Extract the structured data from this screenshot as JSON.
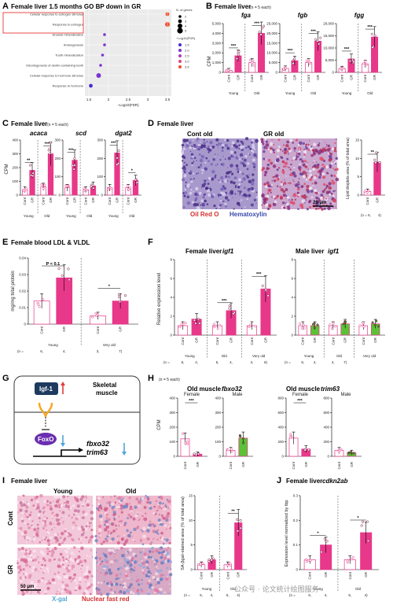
{
  "panelA": {
    "letter": "A",
    "title": "Female liver 1.5 months GO BP down in GR",
    "terms": [
      {
        "label": "Cellular response to estrogen stimulus",
        "logfdr": 3.5,
        "genes": 3,
        "highlight": true
      },
      {
        "label": "Response to estrogen",
        "logfdr": 3.5,
        "genes": 4,
        "highlight": true
      },
      {
        "label": "Enamel mineralization",
        "logfdr": 1.9,
        "genes": 2,
        "highlight": false
      },
      {
        "label": "Amelogenesis",
        "logfdr": 1.9,
        "genes": 2,
        "highlight": false
      },
      {
        "label": "Tooth mineralization",
        "logfdr": 1.85,
        "genes": 2,
        "highlight": false
      },
      {
        "label": "Odontogenesis of dentin-containing tooth",
        "logfdr": 1.8,
        "genes": 2,
        "highlight": false
      },
      {
        "label": "Cellular response to hormone stimulus",
        "logfdr": 1.75,
        "genes": 4,
        "highlight": false
      },
      {
        "label": "Response to hormone",
        "logfdr": 1.55,
        "genes": 3,
        "highlight": false
      }
    ],
    "xticks": [
      "1.5",
      "2",
      "2.5",
      "3",
      "3.5"
    ],
    "xlabel": "−Log10(FDR)",
    "legend_size_title": "N. of genes",
    "legend_sizes": [
      "2",
      "3",
      "4",
      "5"
    ],
    "legend_color_title": "−Log10(FDR)",
    "legend_colors": [
      "1.5",
      "2.0",
      "2.5",
      "3.0",
      "3.5"
    ]
  },
  "panelB": {
    "letter": "B",
    "title": "Female liver",
    "n": "(n = 5 each)",
    "ylabel": "CPM",
    "charts": [
      {
        "gene": "fga",
        "ylim": [
          0,
          5000
        ],
        "yticks": [
          "0",
          "1,000",
          "2,000",
          "3,000",
          "4,000",
          "5,000"
        ],
        "values": [
          200,
          1700,
          1000,
          4000
        ],
        "sig": [
          "***",
          "***"
        ]
      },
      {
        "gene": "fgb",
        "ylim": [
          0,
          25000
        ],
        "yticks": [
          "0",
          "5,000",
          "10,000",
          "15,000",
          "20,000",
          "25,000"
        ],
        "values": [
          2000,
          6000,
          5000,
          16000
        ],
        "sig": [
          "***",
          "***"
        ]
      },
      {
        "gene": "fgg",
        "ylim": [
          0,
          20000
        ],
        "yticks": [
          "0",
          "5,000",
          "10,000",
          "15,000",
          "20,000"
        ],
        "values": [
          1500,
          5500,
          3500,
          14500
        ],
        "sig": [
          "***",
          "***"
        ]
      }
    ],
    "groups": [
      "Young",
      "Old"
    ],
    "conds": [
      "Cont",
      "GR"
    ]
  },
  "panelC": {
    "letter": "C",
    "title": "Female liver",
    "n": "(n = 5 each)",
    "ylabel": "CPM",
    "charts": [
      {
        "gene": "acaca",
        "ylim": [
          0,
          400
        ],
        "yticks": [
          "0",
          "100",
          "200",
          "300",
          "400"
        ],
        "values": [
          40,
          180,
          60,
          300
        ],
        "sig": [
          "**",
          "***"
        ]
      },
      {
        "gene": "scd",
        "ylim": [
          0,
          300
        ],
        "yticks": [
          "0",
          "100",
          "200",
          "300"
        ],
        "values": [
          40,
          190,
          30,
          50
        ],
        "sig": [
          "***",
          ""
        ]
      },
      {
        "gene": "dgat2",
        "ylim": [
          0,
          300
        ],
        "yticks": [
          "0",
          "100",
          "200",
          "300"
        ],
        "values": [
          40,
          230,
          40,
          80
        ],
        "sig": [
          "***",
          "*"
        ]
      }
    ],
    "groups": [
      "Young",
      "Old"
    ],
    "conds": [
      "Cont",
      "GR"
    ]
  },
  "panelD": {
    "letter": "D",
    "title": "Female liver",
    "img_labels": [
      "Cont old",
      "GR old"
    ],
    "stain1": "Oil Red O",
    "stain2": "Hematoxylin",
    "scale": "20 μm",
    "ylabel": "Lipid droplets area (% of total area)",
    "yticks": [
      "0",
      "5",
      "10",
      "15"
    ],
    "ylim": [
      0,
      15
    ],
    "values": [
      1,
      9
    ],
    "sig": "**",
    "conds": [
      "Cont",
      "GR"
    ],
    "n": [
      "(n = 5,",
      "4)"
    ]
  },
  "panelE": {
    "letter": "E",
    "title": "Female blood LDL & VLDL",
    "ylabel": "mg/mg total protein",
    "yticks": [
      "0",
      "0.01",
      "0.02",
      "0.03",
      "0.04"
    ],
    "ylim": [
      0,
      0.04
    ],
    "values": [
      0.014,
      0.028,
      0.005,
      0.014
    ],
    "annot": [
      "P < 0.1",
      "*"
    ],
    "groups": [
      "Young",
      "Very old"
    ],
    "conds": [
      "Cont",
      "GR"
    ],
    "n": [
      "(n =",
      "6,",
      "4,",
      "3,",
      "7)"
    ]
  },
  "panelF": {
    "letter": "F",
    "title1": "Female liver",
    "gene1": "igf1",
    "title2": "Male liver",
    "gene2": "igf1",
    "ylabel": "Relative expression level",
    "yticks": [
      "0",
      "2",
      "4",
      "6",
      "8"
    ],
    "ylim": [
      0,
      8
    ],
    "female_values": [
      1,
      1.7,
      1,
      2.6,
      1,
      4.9
    ],
    "female_sig": [
      "",
      "***",
      "***"
    ],
    "male_values": [
      1,
      1,
      1,
      1.2,
      1,
      1.2
    ],
    "groups": [
      "Young",
      "Old",
      "Very old"
    ],
    "conds": [
      "Cont",
      "GR"
    ],
    "n_female": [
      "(n =",
      "6,",
      "4,",
      "5,",
      "4,",
      "3,",
      "6)"
    ],
    "n_male": [
      "(n =",
      "6,",
      "4,",
      "4,",
      "7)"
    ]
  },
  "panelG": {
    "letter": "G",
    "igf": "Igf-1",
    "foxo": "FoxO",
    "tissue1": "Skeletal",
    "tissue2": "muscle",
    "gene1": "fbxo32",
    "gene2": "trim63"
  },
  "panelH": {
    "letter": "H",
    "n": "(n = 5 each)",
    "title1": "Old muscle",
    "gene1": "fbxo32",
    "title2": "Old muscle",
    "gene2": "trim63",
    "ylabel": "CPM",
    "sex": [
      "Female",
      "Male"
    ],
    "chart1": {
      "yticks": [
        "0",
        "100",
        "200",
        "300",
        "400"
      ],
      "ylim": [
        0,
        400
      ],
      "female": [
        120,
        15
      ],
      "male": [
        40,
        125
      ],
      "sig": "***"
    },
    "chart2": {
      "yticks": [
        "0",
        "200",
        "400",
        "600",
        "800"
      ],
      "ylim": [
        0,
        800
      ],
      "female": [
        250,
        100
      ],
      "male": [
        80,
        50
      ],
      "sig": "***"
    },
    "conds": [
      "Cont",
      "GR"
    ]
  },
  "panelI": {
    "letter": "I",
    "title": "Female liver",
    "col_labels": [
      "Young",
      "Old"
    ],
    "row_labels": [
      "Cont",
      "GR"
    ],
    "scale": "50 μm",
    "stain1": "X-gal",
    "stain2": "Nuclear fast red",
    "ylabel": "SA-βgal–stained area (% of total area)",
    "yticks": [
      "0",
      "5",
      "10",
      "15"
    ],
    "ylim": [
      0,
      15
    ],
    "values": [
      1,
      2,
      1,
      9.5
    ],
    "sig": "**",
    "groups": [
      "Young",
      "Old"
    ],
    "conds": [
      "Cont",
      "GR"
    ],
    "n": [
      "(n =",
      "6,",
      "4,",
      "5,",
      "4)"
    ]
  },
  "panelJ": {
    "letter": "J",
    "title": "Female liver",
    "gene": "cdkn2ab",
    "ylabel": "Expression level normalized by tbp",
    "yticks": [
      "0",
      "0.1",
      "0.2",
      "0.3"
    ],
    "ylim": [
      0,
      0.3
    ],
    "values": [
      0.04,
      0.1,
      0.04,
      0.15
    ],
    "sig": [
      "*",
      "*"
    ],
    "groups": [
      "Young",
      "Old"
    ],
    "conds": [
      "Cont",
      "GR"
    ],
    "n": [
      "(n =",
      "6,",
      "4,",
      "5,",
      "4)"
    ]
  },
  "watermark": "公众号 · 论文统计绘图服务",
  "colors": {
    "cont": "#ffffff",
    "gr": "#e8388a",
    "gr_dark": "#b5125f",
    "male_gr": "#5bc236",
    "male_dot": "#3c9a22",
    "cont_dot": "#e8388a"
  }
}
